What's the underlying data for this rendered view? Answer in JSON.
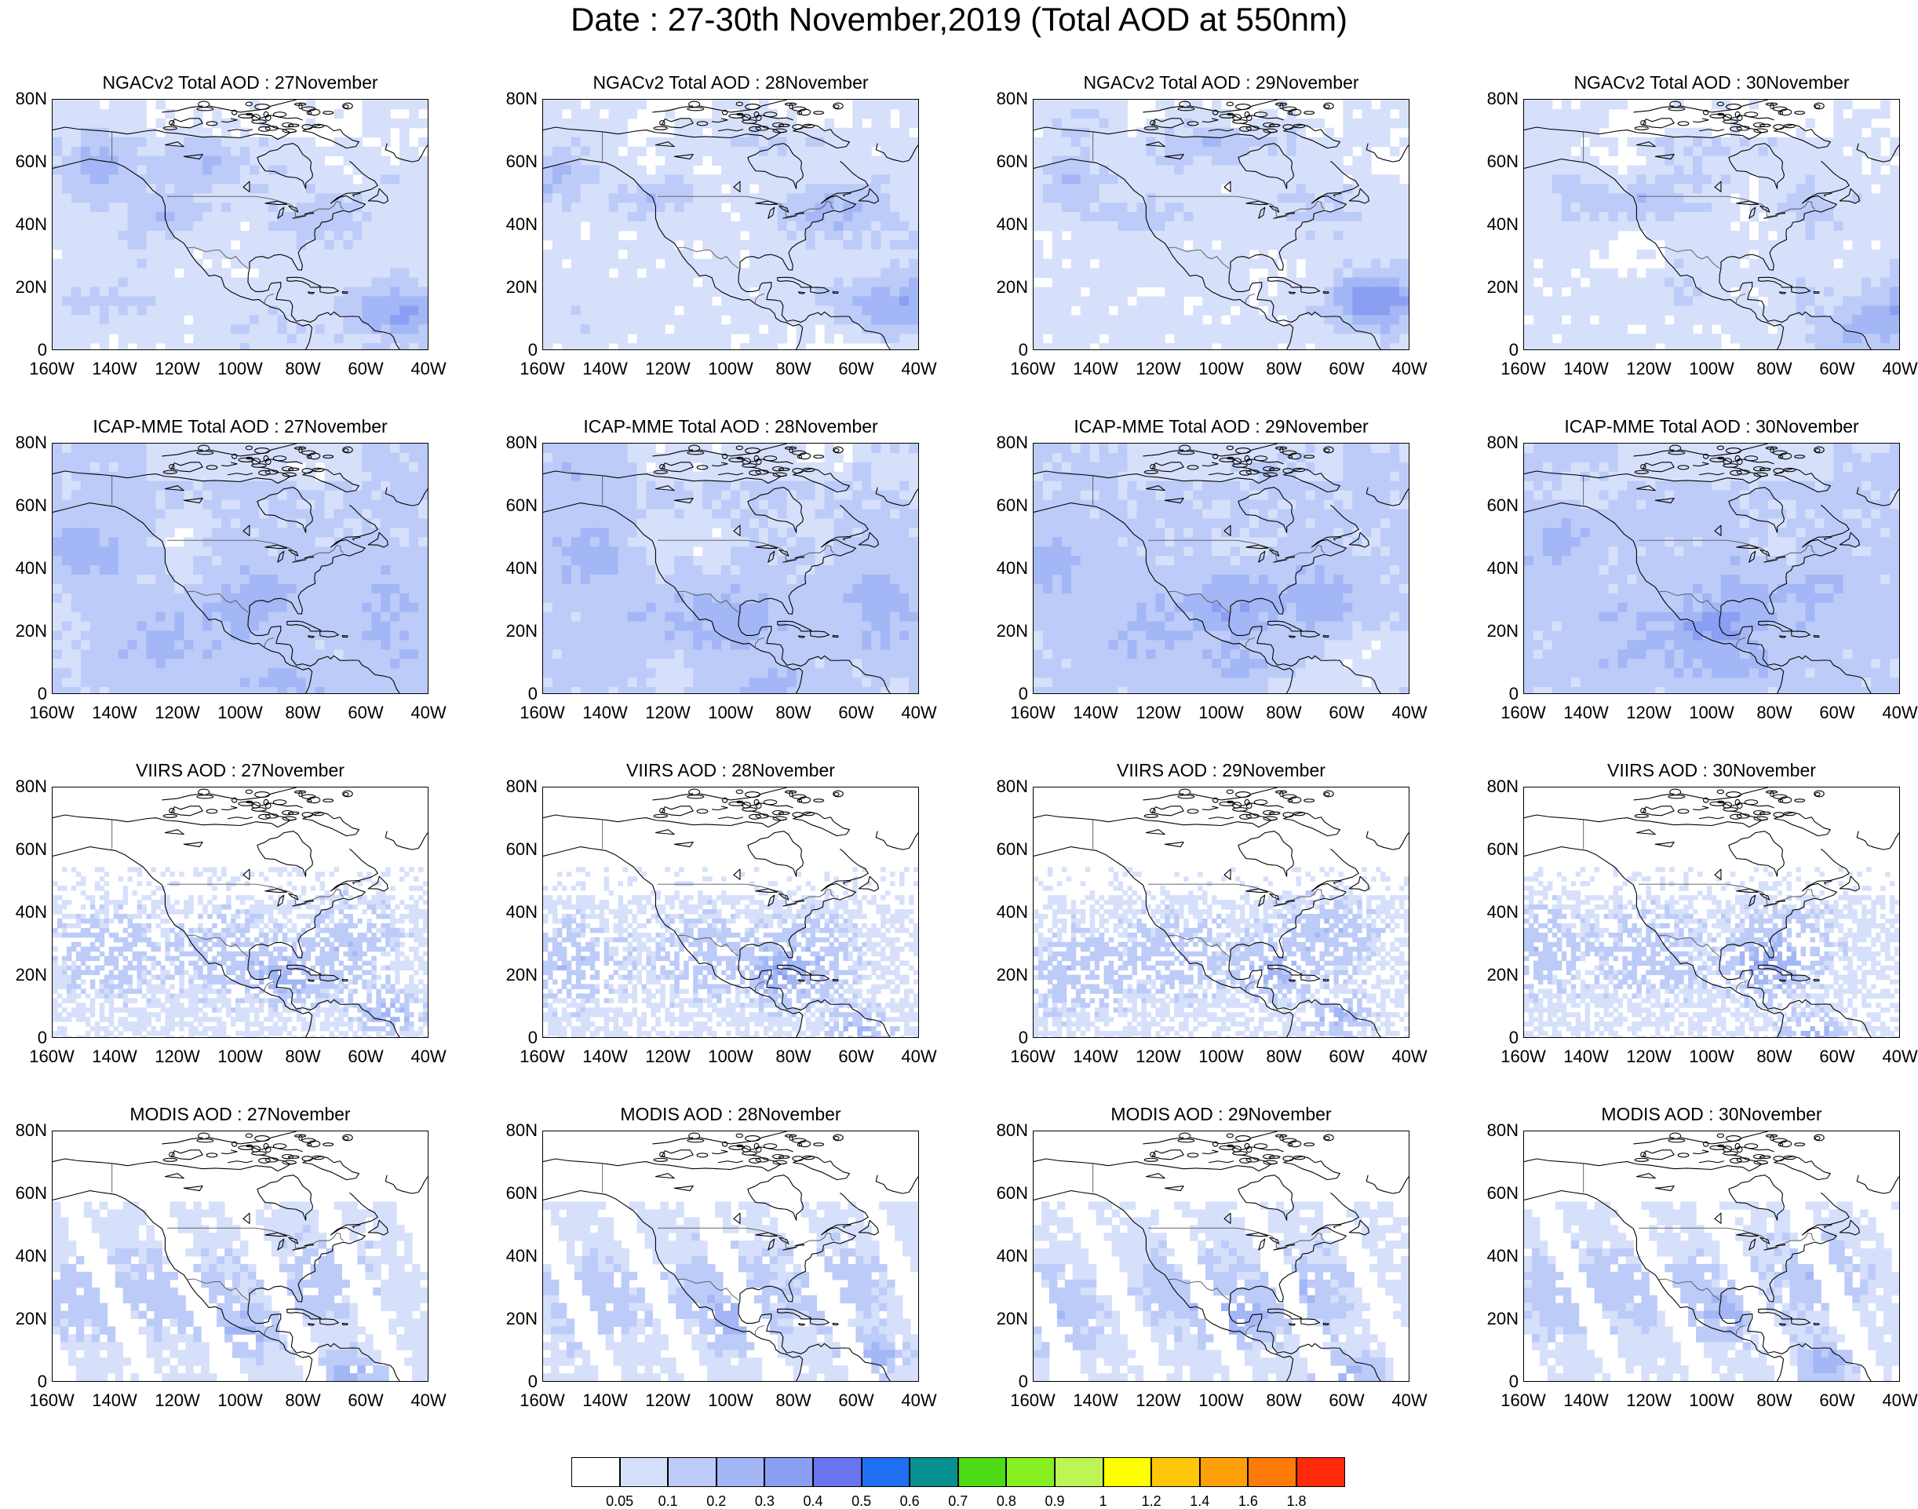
{
  "title": "Date : 27-30th November,2019 (Total AOD at 550nm)",
  "rows": [
    {
      "product": "NGACv2 Total AOD",
      "style": "model-light",
      "titles": [
        "NGACv2 Total AOD : 27November",
        "NGACv2 Total AOD : 28November",
        "NGACv2 Total AOD : 29November",
        "NGACv2 Total AOD : 30November"
      ]
    },
    {
      "product": "ICAP-MME Total AOD",
      "style": "model-heavy",
      "titles": [
        "ICAP-MME Total AOD : 27November",
        "ICAP-MME Total AOD : 28November",
        "ICAP-MME Total AOD : 29November",
        "ICAP-MME Total AOD : 30November"
      ]
    },
    {
      "product": "VIIRS AOD",
      "style": "satellite-speckle",
      "titles": [
        "VIIRS AOD : 27November",
        "VIIRS AOD : 28November",
        "VIIRS AOD : 29November",
        "VIIRS AOD : 30November"
      ]
    },
    {
      "product": "MODIS AOD",
      "style": "satellite-swath",
      "titles": [
        "MODIS AOD : 27November",
        "MODIS AOD : 28November",
        "MODIS AOD : 29November",
        "MODIS AOD : 30November"
      ]
    }
  ],
  "lat_ticks": [
    "80N",
    "60N",
    "40N",
    "20N",
    "0"
  ],
  "lon_ticks": [
    "160W",
    "140W",
    "120W",
    "100W",
    "80W",
    "60W",
    "40W"
  ],
  "colorbar": {
    "labels": [
      "0.05",
      "0.1",
      "0.2",
      "0.3",
      "0.4",
      "0.5",
      "0.6",
      "0.7",
      "0.8",
      "0.9",
      "1",
      "1.2",
      "1.4",
      "1.6",
      "1.8"
    ],
    "colors": [
      "#ffffff",
      "#d6e0fb",
      "#bccbf8",
      "#a3b6f5",
      "#8a9ef2",
      "#6b74ef",
      "#1f6ff2",
      "#079090",
      "#4ddb16",
      "#86f022",
      "#bdf555",
      "#ffff00",
      "#ffc60a",
      "#ff9f0a",
      "#ff7c0a",
      "#ff2a0a"
    ]
  },
  "field_colors": {
    "white": "#ffffff",
    "c1": "#d6e0fb",
    "c2": "#bccbf8",
    "c3": "#a3b6f5",
    "c4": "#8a9ef2"
  },
  "coastline_color": "#000000"
}
